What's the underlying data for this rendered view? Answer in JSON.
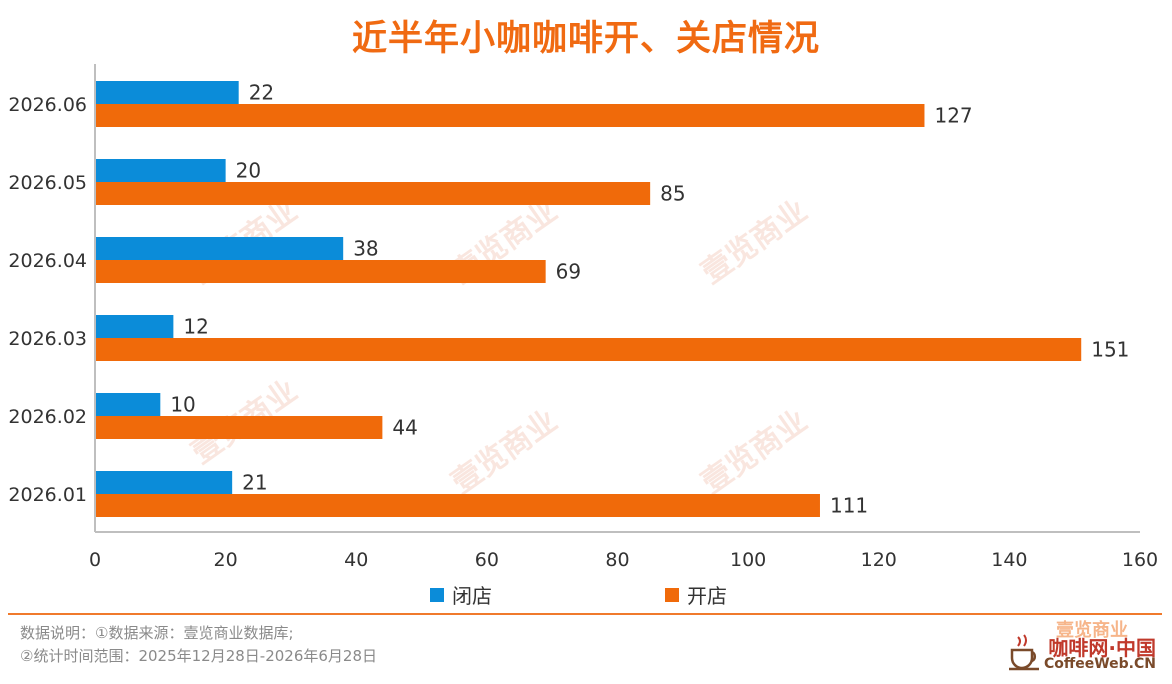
{
  "chart_data": {
    "type": "bar",
    "orientation": "horizontal",
    "title": "近半年小咖咖啡开、关店情况",
    "categories": [
      "2026.06",
      "2026.05",
      "2026.04",
      "2026.03",
      "2026.02",
      "2026.01"
    ],
    "series": [
      {
        "name": "闭店",
        "color": "#0B8CD9",
        "values": [
          22,
          20,
          38,
          12,
          10,
          21
        ]
      },
      {
        "name": "开店",
        "color": "#F06A0A",
        "values": [
          127,
          85,
          69,
          151,
          44,
          111
        ]
      }
    ],
    "xlim": [
      0,
      160
    ],
    "x_ticks": [
      "0",
      "20",
      "40",
      "60",
      "80",
      "100",
      "120",
      "140",
      "160"
    ],
    "grid": false,
    "legend_position": "bottom"
  },
  "watermark": "壹览商业",
  "notes": {
    "line1": "数据说明：①数据来源：壹览商业数据库;",
    "line2": "②统计时间范围：2025年12月28日-2026年6月28日"
  },
  "logo": {
    "top": "壹览商业",
    "main": "咖啡网·中国",
    "sub": "CoffeeWeb.CN"
  }
}
